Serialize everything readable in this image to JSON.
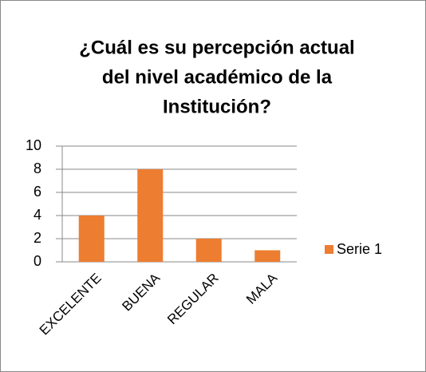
{
  "chart_data": {
    "type": "bar",
    "title": [
      "¿Cuál es su percepción actual",
      "del nivel académico de la",
      "Institución?"
    ],
    "categories": [
      "EXCELENTE",
      "BUENA",
      "REGULAR",
      "MALA"
    ],
    "series": [
      {
        "name": "Serie 1",
        "color": "#ed7d31",
        "values": [
          4,
          8,
          2,
          1
        ]
      }
    ],
    "ylim": [
      0,
      10
    ],
    "yticks": [
      0,
      2,
      4,
      6,
      8,
      10
    ],
    "grid": true,
    "legend": "right"
  }
}
